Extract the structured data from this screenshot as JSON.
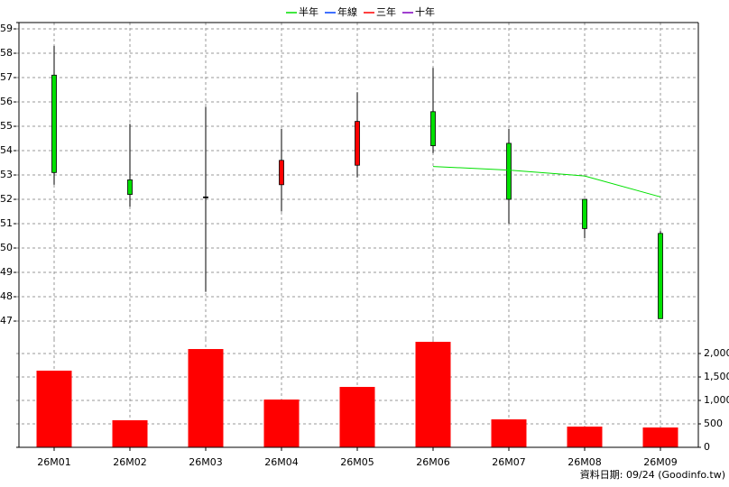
{
  "chart_data": [
    {
      "type": "candlestick",
      "categories": [
        "26M01",
        "26M02",
        "26M03",
        "26M04",
        "26M05",
        "26M06",
        "26M07",
        "26M08",
        "26M09"
      ],
      "open": [
        57.1,
        52.8,
        52.1,
        52.6,
        53.4,
        55.6,
        54.3,
        52.0,
        50.6
      ],
      "high": [
        58.3,
        55.1,
        55.8,
        54.9,
        56.4,
        57.4,
        54.9,
        52.0,
        50.7
      ],
      "low": [
        52.6,
        51.7,
        48.2,
        51.5,
        52.9,
        53.9,
        51.0,
        50.4,
        47.1
      ],
      "close": [
        53.1,
        52.2,
        52.1,
        53.6,
        55.2,
        54.2,
        52.0,
        50.8,
        47.1
      ],
      "up_color": "#ff0000",
      "down_color": "#00e000",
      "flat_color": "#000000",
      "series": [
        {
          "name": "半年",
          "color": "#00e000",
          "values": [
            null,
            null,
            null,
            null,
            null,
            53.35,
            53.2,
            52.96,
            52.1
          ]
        },
        {
          "name": "年線",
          "color": "#0040ff",
          "values": [
            null,
            null,
            null,
            null,
            null,
            null,
            null,
            null,
            null
          ]
        },
        {
          "name": "三年",
          "color": "#ff0000",
          "values": [
            null,
            null,
            null,
            null,
            null,
            null,
            null,
            null,
            null
          ]
        },
        {
          "name": "十年",
          "color": "#8000c0",
          "values": [
            null,
            null,
            null,
            null,
            null,
            null,
            null,
            null,
            null
          ]
        }
      ],
      "ylim": [
        46.26,
        59.26
      ],
      "yticks": [
        47,
        48,
        49,
        50,
        51,
        52,
        53,
        54,
        55,
        56,
        57,
        58,
        59
      ],
      "grid": true
    },
    {
      "type": "bar",
      "categories": [
        "26M01",
        "26M02",
        "26M03",
        "26M04",
        "26M05",
        "26M06",
        "26M07",
        "26M08",
        "26M09"
      ],
      "values": [
        1635,
        577,
        2096,
        1019,
        1288,
        2250,
        596,
        442,
        423
      ],
      "color": "#ff0000",
      "ylim": [
        0,
        2308
      ],
      "yticks": [
        0,
        500,
        {
          "value": 1000,
          "label": "1,000"
        },
        {
          "value": 1500,
          "label": "1,500"
        },
        {
          "value": 2000,
          "label": "2,000"
        }
      ],
      "grid": true
    }
  ],
  "footer": "資料日期: 09/24  (Goodinfo.tw)"
}
